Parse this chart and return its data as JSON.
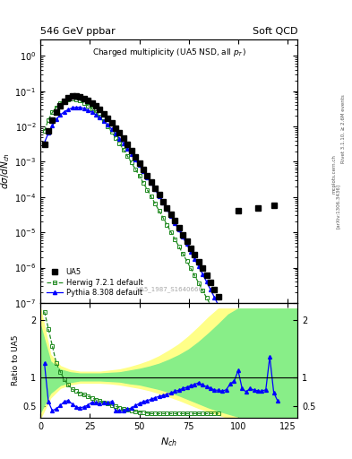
{
  "title_left": "546 GeV ppbar",
  "title_right": "Soft QCD",
  "plot_title": "Charged multiplicity (UA5 NSD, all $p_T$)",
  "ylabel_main": "$d\\sigma/dN_{ch}$",
  "ylabel_ratio": "Ratio to UA5",
  "xlabel": "$N_{ch}$",
  "watermark": "UA5_1987_S1640666",
  "right_label_top": "Rivet 3.1.10, ≥ 2.6M events",
  "arxiv_label": "[arXiv:1306.3436]",
  "mcplots_label": "mcplots.cern.ch",
  "ua5_x": [
    2,
    4,
    6,
    8,
    10,
    12,
    14,
    16,
    18,
    20,
    22,
    24,
    26,
    28,
    30,
    32,
    34,
    36,
    38,
    40,
    42,
    44,
    46,
    48,
    50,
    52,
    54,
    56,
    58,
    60,
    62,
    64,
    66,
    68,
    70,
    72,
    74,
    76,
    78,
    80,
    82,
    84,
    86,
    88,
    90,
    100,
    110,
    118
  ],
  "ua5_y": [
    0.0032,
    0.0075,
    0.015,
    0.026,
    0.039,
    0.052,
    0.064,
    0.072,
    0.073,
    0.07,
    0.063,
    0.055,
    0.046,
    0.038,
    0.03,
    0.023,
    0.017,
    0.0125,
    0.009,
    0.0065,
    0.0046,
    0.0031,
    0.0021,
    0.0014,
    0.00093,
    0.00062,
    0.00041,
    0.00027,
    0.00018,
    0.000115,
    7.5e-05,
    4.9e-05,
    3.2e-05,
    2.1e-05,
    1.35e-05,
    8.7e-06,
    5.6e-06,
    3.6e-06,
    2.3e-06,
    1.5e-06,
    9.5e-07,
    6e-07,
    3.8e-07,
    2.4e-07,
    1.5e-07,
    4e-05,
    5e-05,
    6e-05
  ],
  "herwig_x": [
    2,
    4,
    6,
    8,
    10,
    12,
    14,
    16,
    18,
    20,
    22,
    24,
    26,
    28,
    30,
    32,
    34,
    36,
    38,
    40,
    42,
    44,
    46,
    48,
    50,
    52,
    54,
    56,
    58,
    60,
    62,
    64,
    66,
    68,
    70,
    72,
    74,
    76,
    78,
    80,
    82,
    84,
    86,
    88,
    90,
    92,
    94,
    96,
    98,
    100,
    102,
    104,
    106,
    108,
    110,
    112,
    114,
    116,
    118,
    120,
    122,
    124,
    126,
    128,
    130
  ],
  "herwig_y": [
    0.0075,
    0.0155,
    0.025,
    0.035,
    0.045,
    0.053,
    0.059,
    0.061,
    0.059,
    0.054,
    0.047,
    0.039,
    0.032,
    0.025,
    0.019,
    0.014,
    0.01,
    0.007,
    0.0048,
    0.0033,
    0.0022,
    0.00145,
    0.00095,
    0.00062,
    0.0004,
    0.000255,
    0.000162,
    0.000103,
    6.5e-05,
    4.1e-05,
    2.6e-05,
    1.63e-05,
    1.02e-05,
    6.4e-06,
    4e-06,
    2.5e-06,
    1.55e-06,
    9.6e-07,
    6e-07,
    3.7e-07,
    2.3e-07,
    1.42e-07,
    8.8e-08,
    5.4e-08,
    3.3e-08,
    2e-08,
    1.23e-08,
    7.5e-09,
    4.6e-09,
    2.8e-09,
    1.7e-09,
    1.04e-09,
    6.3e-10,
    3.8e-10,
    2.3e-10,
    1.4e-10,
    8.5e-11,
    5.1e-11,
    3.1e-11,
    1.9e-11,
    1.14e-11,
    6.9e-12,
    4.2e-12,
    2.5e-12,
    1.5e-12
  ],
  "pythia_x": [
    2,
    4,
    6,
    8,
    10,
    12,
    14,
    16,
    18,
    20,
    22,
    24,
    26,
    28,
    30,
    32,
    34,
    36,
    38,
    40,
    42,
    44,
    46,
    48,
    50,
    52,
    54,
    56,
    58,
    60,
    62,
    64,
    66,
    68,
    70,
    72,
    74,
    76,
    78,
    80,
    82,
    84,
    86,
    88,
    90,
    92,
    94,
    96,
    98,
    100,
    102,
    104,
    106,
    108,
    110,
    112,
    114,
    116,
    118,
    120
  ],
  "pythia_y": [
    0.0035,
    0.0065,
    0.0105,
    0.016,
    0.021,
    0.026,
    0.03,
    0.0335,
    0.035,
    0.035,
    0.0325,
    0.029,
    0.0255,
    0.0215,
    0.0175,
    0.014,
    0.011,
    0.0084,
    0.0062,
    0.00455,
    0.0033,
    0.00235,
    0.00165,
    0.00115,
    0.00079,
    0.00054,
    0.000365,
    0.000245,
    0.000163,
    0.000107,
    7e-05,
    4.5e-05,
    2.9e-05,
    1.85e-05,
    1.17e-05,
    7.4e-06,
    4.6e-06,
    2.85e-06,
    1.76e-06,
    1.08e-06,
    6.6e-07,
    4e-07,
    2.4e-07,
    1.44e-07,
    8.6e-08,
    5.1e-08,
    3e-08,
    1.77e-08,
    1.04e-08,
    6.1e-09,
    3.55e-09,
    2.06e-09,
    1.19e-09,
    6.9e-10,
    3.98e-10,
    2.3e-10,
    1.32e-10,
    7.6e-11,
    4.35e-11,
    2.5e-11
  ],
  "ratio_herwig_x": [
    2,
    4,
    6,
    8,
    10,
    12,
    14,
    16,
    18,
    20,
    22,
    24,
    26,
    28,
    30,
    32,
    34,
    36,
    38,
    40,
    42,
    44,
    46,
    48,
    50,
    52,
    54,
    56,
    58,
    60,
    62,
    64,
    66,
    68,
    70,
    72,
    74,
    76,
    78,
    80,
    82,
    84,
    86,
    88,
    90
  ],
  "ratio_herwig_y": [
    2.15,
    1.85,
    1.55,
    1.25,
    1.1,
    0.97,
    0.87,
    0.8,
    0.76,
    0.72,
    0.7,
    0.67,
    0.65,
    0.61,
    0.59,
    0.57,
    0.55,
    0.52,
    0.5,
    0.47,
    0.45,
    0.44,
    0.42,
    0.41,
    0.4,
    0.39,
    0.38,
    0.37,
    0.37,
    0.37,
    0.37,
    0.37,
    0.37,
    0.37,
    0.37,
    0.37,
    0.37,
    0.37,
    0.37,
    0.37,
    0.37,
    0.37,
    0.37,
    0.37,
    0.37
  ],
  "ratio_pythia_x": [
    2,
    4,
    6,
    8,
    10,
    12,
    14,
    16,
    18,
    20,
    22,
    24,
    26,
    28,
    30,
    32,
    34,
    36,
    38,
    40,
    42,
    44,
    46,
    48,
    50,
    52,
    54,
    56,
    58,
    60,
    62,
    64,
    66,
    68,
    70,
    72,
    74,
    76,
    78,
    80,
    82,
    84,
    86,
    88,
    90,
    92,
    94,
    96,
    98,
    100,
    102,
    104,
    106,
    108,
    110,
    112,
    114,
    116,
    118,
    120
  ],
  "ratio_pythia_y": [
    1.25,
    0.58,
    0.42,
    0.46,
    0.51,
    0.58,
    0.6,
    0.54,
    0.49,
    0.47,
    0.49,
    0.52,
    0.57,
    0.56,
    0.55,
    0.56,
    0.57,
    0.58,
    0.42,
    0.42,
    0.43,
    0.45,
    0.47,
    0.51,
    0.55,
    0.58,
    0.6,
    0.62,
    0.65,
    0.67,
    0.69,
    0.71,
    0.73,
    0.76,
    0.78,
    0.81,
    0.83,
    0.86,
    0.88,
    0.91,
    0.87,
    0.84,
    0.82,
    0.78,
    0.78,
    0.76,
    0.79,
    0.89,
    0.94,
    1.12,
    0.81,
    0.75,
    0.81,
    0.78,
    0.77,
    0.76,
    0.79,
    1.36,
    0.74,
    0.59
  ],
  "band_yellow_x": [
    0,
    5,
    10,
    15,
    20,
    25,
    30,
    35,
    40,
    45,
    50,
    55,
    60,
    65,
    70,
    75,
    80,
    85,
    90,
    95,
    100,
    105,
    110,
    115,
    120,
    125,
    130
  ],
  "band_yellow_lo": [
    0.3,
    0.65,
    0.82,
    0.88,
    0.91,
    0.91,
    0.91,
    0.9,
    0.88,
    0.85,
    0.82,
    0.78,
    0.73,
    0.67,
    0.61,
    0.54,
    0.47,
    0.41,
    0.35,
    0.3,
    0.25,
    0.22,
    0.19,
    0.17,
    0.15,
    0.14,
    0.13
  ],
  "band_yellow_hi": [
    2.2,
    1.4,
    1.2,
    1.13,
    1.1,
    1.1,
    1.1,
    1.12,
    1.14,
    1.18,
    1.23,
    1.29,
    1.37,
    1.47,
    1.58,
    1.72,
    1.88,
    2.05,
    2.2,
    2.2,
    2.2,
    2.2,
    2.2,
    2.2,
    2.2,
    2.2,
    2.2
  ],
  "band_green_x": [
    0,
    5,
    10,
    15,
    20,
    25,
    30,
    35,
    40,
    45,
    50,
    55,
    60,
    65,
    70,
    75,
    80,
    85,
    90,
    95,
    100,
    105,
    110,
    115,
    120,
    125,
    130
  ],
  "band_green_lo": [
    0.4,
    0.73,
    0.87,
    0.92,
    0.95,
    0.95,
    0.95,
    0.94,
    0.93,
    0.9,
    0.88,
    0.84,
    0.8,
    0.75,
    0.69,
    0.62,
    0.55,
    0.48,
    0.42,
    0.37,
    0.32,
    0.29,
    0.26,
    0.24,
    0.22,
    0.21,
    0.2
  ],
  "band_green_hi": [
    1.9,
    1.28,
    1.14,
    1.09,
    1.07,
    1.07,
    1.07,
    1.08,
    1.09,
    1.12,
    1.15,
    1.19,
    1.24,
    1.31,
    1.39,
    1.49,
    1.62,
    1.77,
    1.93,
    2.1,
    2.2,
    2.2,
    2.2,
    2.2,
    2.2,
    2.2,
    2.2
  ],
  "ua5_color": "black",
  "herwig_color": "#228B22",
  "pythia_color": "blue",
  "yellow_color": "#FFFF88",
  "green_color": "#88EE88",
  "ylim_main": [
    1e-07,
    3.0
  ],
  "ylim_ratio": [
    0.3,
    2.3
  ],
  "xlim": [
    0,
    130
  ]
}
